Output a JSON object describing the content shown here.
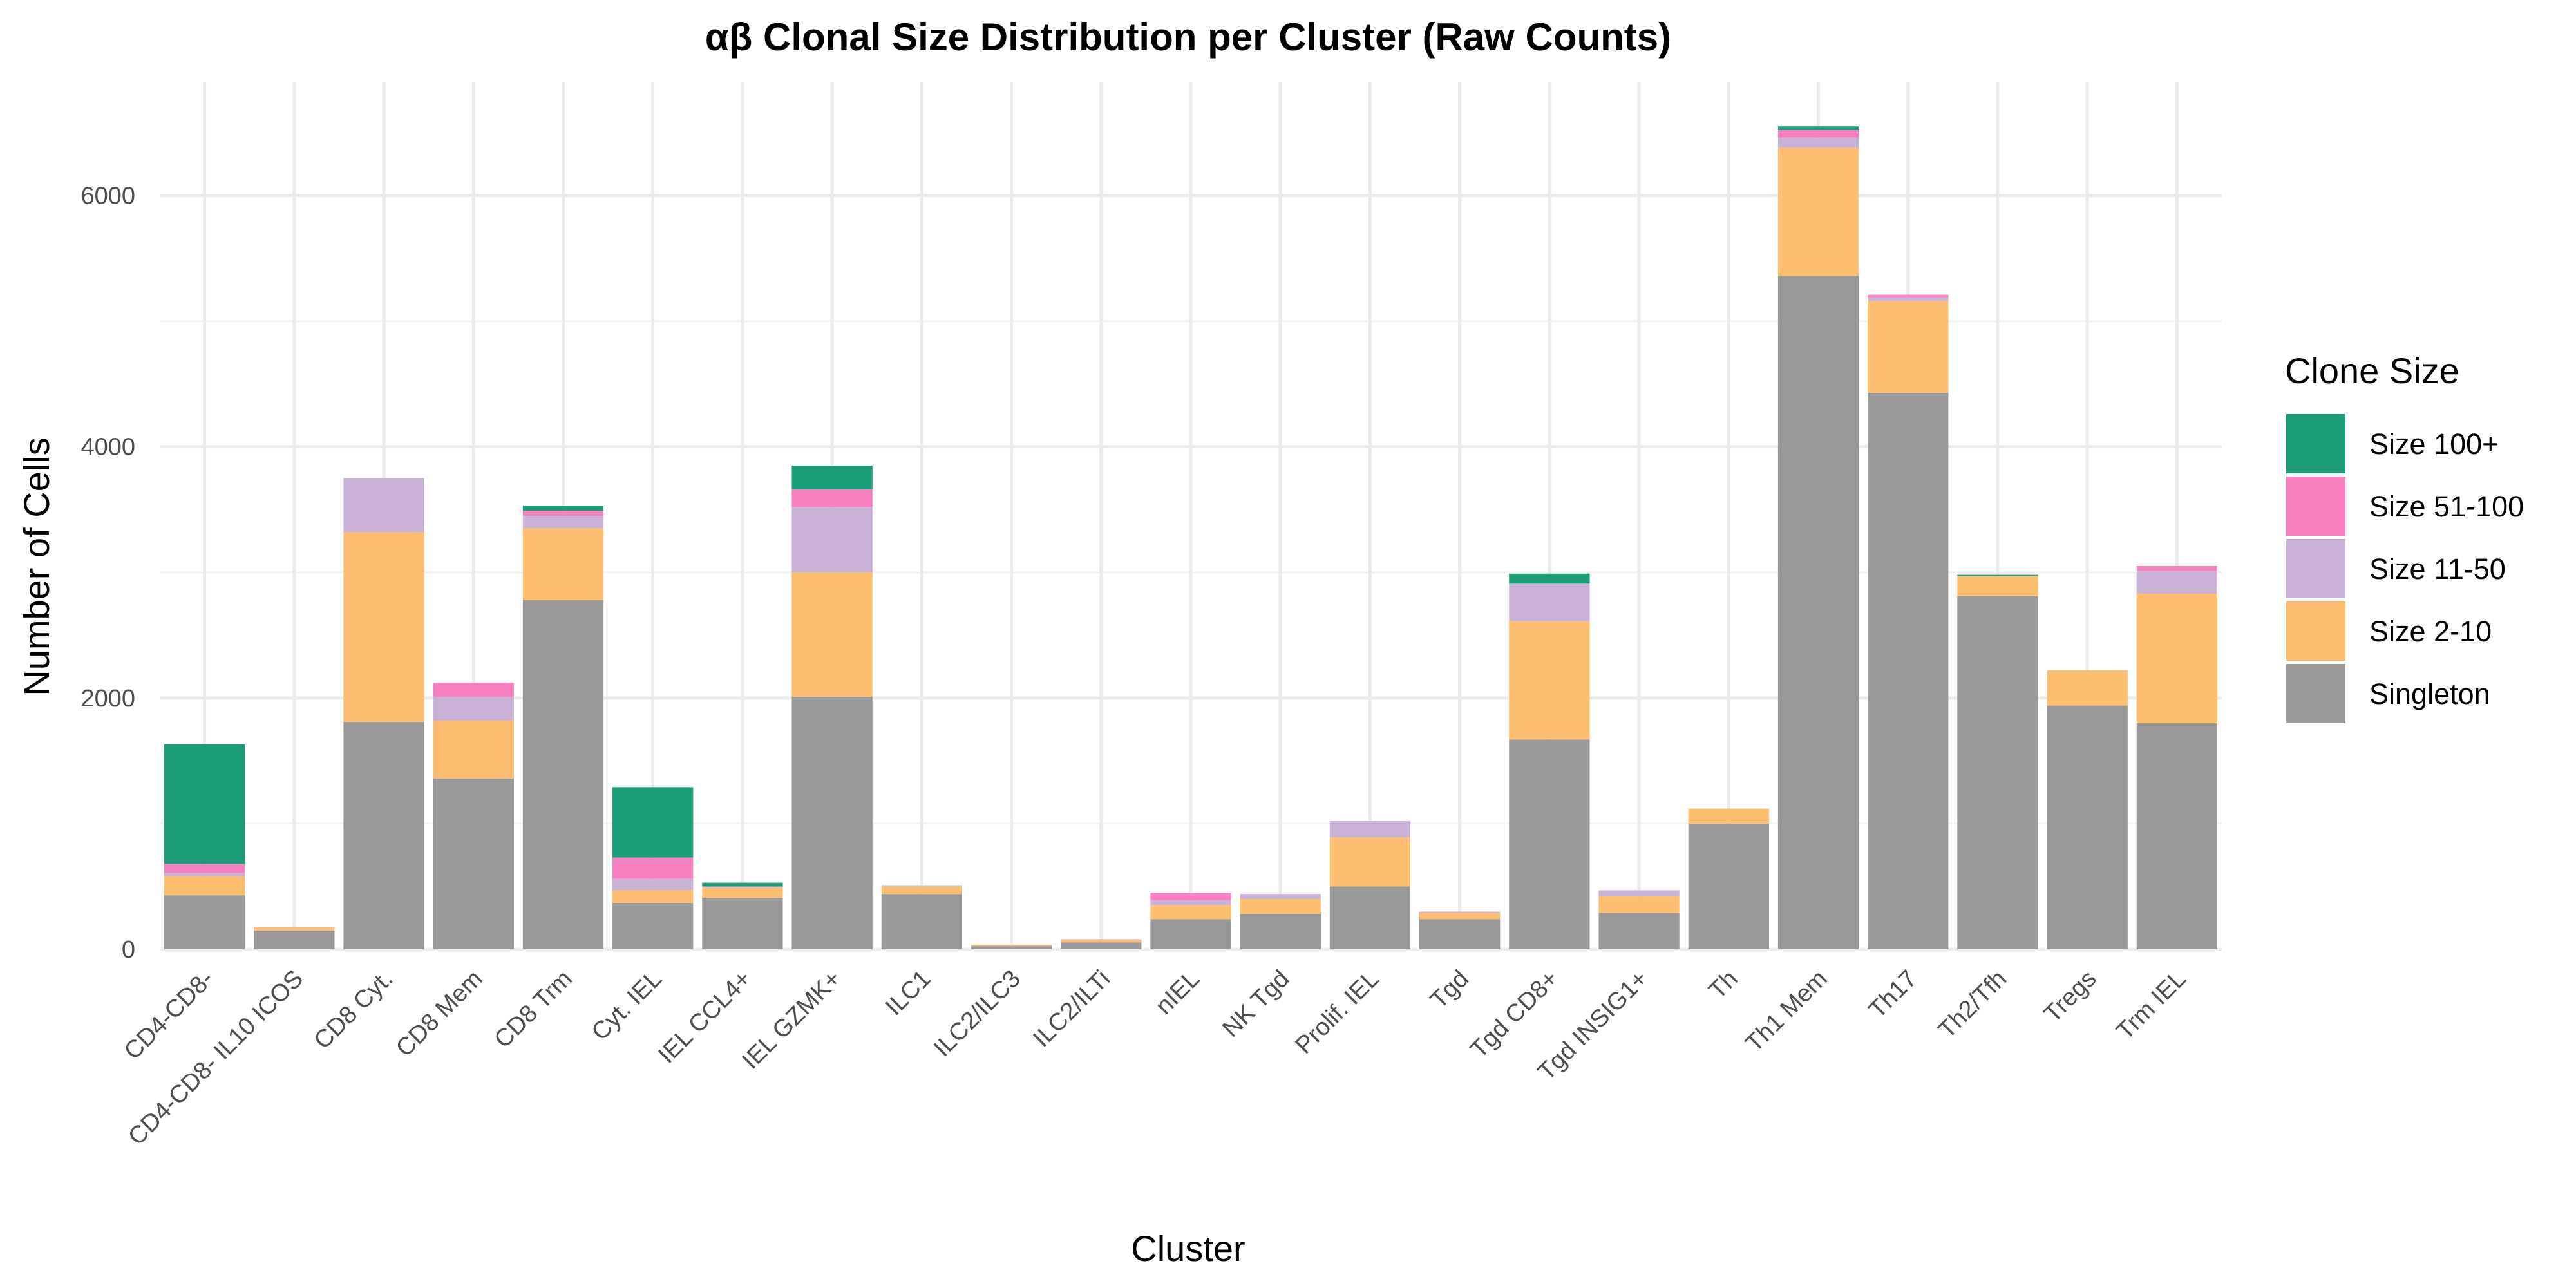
{
  "chart_data": {
    "type": "bar",
    "stacked": true,
    "title": "αβ Clonal Size Distribution per Cluster (Raw Counts)",
    "xlabel": "Cluster",
    "ylabel": "Number of Cells",
    "ylim": [
      0,
      6900
    ],
    "yticks": [
      0,
      2000,
      4000,
      6000
    ],
    "grid": true,
    "legend": {
      "title": "Clone Size",
      "position": "right"
    },
    "categories": [
      "CD4-CD8-",
      "CD4-CD8- IL10 ICOS",
      "CD8 Cyt.",
      "CD8 Mem",
      "CD8 Trm",
      "Cyt. IEL",
      "IEL CCL4+",
      "IEL GZMK+",
      "ILC1",
      "ILC2/ILC3",
      "ILC2/ILTi",
      "nIEL",
      "NK Tgd",
      "Prolif. IEL",
      "Tgd",
      "Tgd CD8+",
      "Tgd INSIG1+",
      "Th",
      "Th1 Mem",
      "Th17",
      "Th2/Tfh",
      "Tregs",
      "Trm IEL"
    ],
    "series": [
      {
        "name": "Singleton",
        "color": "#999999",
        "values": [
          430,
          150,
          1810,
          1360,
          2780,
          370,
          410,
          2010,
          440,
          25,
          55,
          240,
          280,
          500,
          240,
          1670,
          290,
          1000,
          5360,
          4430,
          2810,
          1940,
          1800
        ]
      },
      {
        "name": "Size 2-10",
        "color": "#FDBF6F",
        "values": [
          150,
          25,
          1510,
          460,
          570,
          100,
          80,
          990,
          60,
          10,
          20,
          110,
          120,
          390,
          50,
          940,
          130,
          120,
          1020,
          730,
          160,
          280,
          1030
        ]
      },
      {
        "name": "Size 11-50",
        "color": "#CAB2D6",
        "values": [
          30,
          0,
          430,
          190,
          100,
          90,
          10,
          520,
          10,
          0,
          5,
          40,
          40,
          130,
          10,
          300,
          50,
          0,
          80,
          30,
          0,
          0,
          180
        ]
      },
      {
        "name": "Size 51-100",
        "color": "#F781BF",
        "values": [
          70,
          0,
          0,
          110,
          40,
          170,
          0,
          140,
          0,
          0,
          0,
          60,
          0,
          0,
          0,
          0,
          0,
          0,
          60,
          20,
          0,
          0,
          40
        ]
      },
      {
        "name": "Size 100+",
        "color": "#1B9E77",
        "values": [
          950,
          0,
          0,
          0,
          40,
          560,
          30,
          190,
          0,
          0,
          0,
          0,
          0,
          0,
          0,
          80,
          0,
          0,
          30,
          0,
          10,
          0,
          0
        ]
      }
    ],
    "legend_order": [
      "Size 100+",
      "Size 51-100",
      "Size 11-50",
      "Size 2-10",
      "Singleton"
    ]
  }
}
